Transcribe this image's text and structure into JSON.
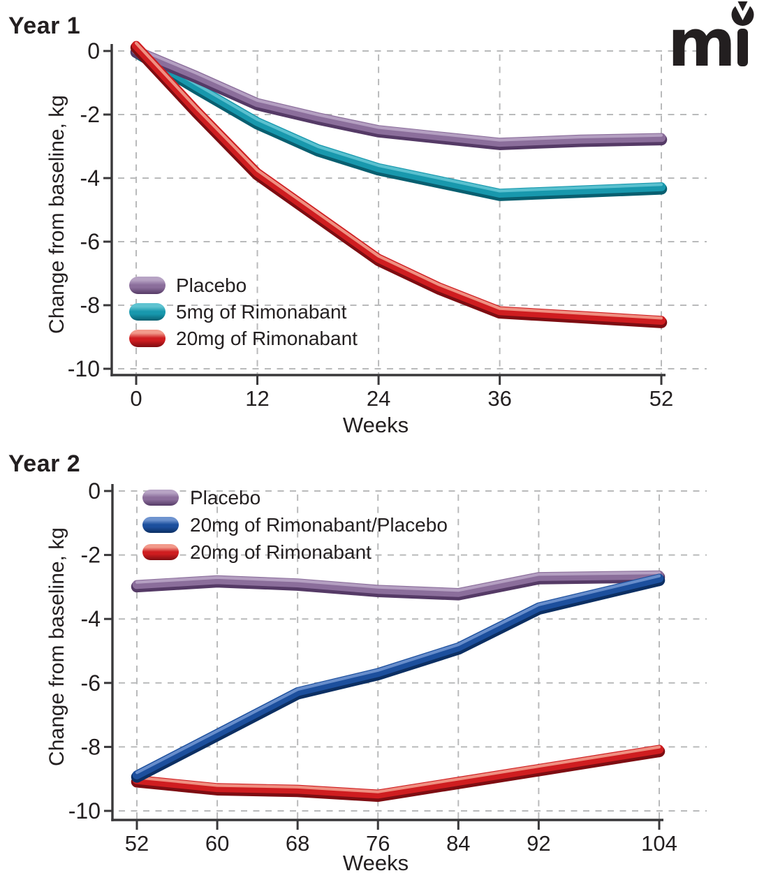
{
  "page": {
    "background": "#ffffff",
    "text_color": "#231f20",
    "axis_color": "#39383a",
    "grid_color": "#b9babb"
  },
  "logo": {
    "m": "m",
    "description": "mi-logo"
  },
  "chart_data": [
    {
      "type": "line",
      "title": "Year 1",
      "xlabel": "Weeks",
      "ylabel": "Change from baseline, kg",
      "x_ticks": [
        0,
        12,
        24,
        36,
        52
      ],
      "y_ticks": [
        0,
        -2,
        -4,
        -6,
        -8,
        -10
      ],
      "xlim": [
        0,
        52
      ],
      "ylim": [
        0,
        -10
      ],
      "grid": true,
      "legend_position": "lower-left",
      "x": [
        0,
        6,
        12,
        18,
        24,
        30,
        36,
        44,
        52
      ],
      "series": [
        {
          "name": "Placebo",
          "color": "#8b6e9b",
          "highlight": "#b7a3c4",
          "shadow": "#553a66",
          "values": [
            0,
            -0.8,
            -1.65,
            -2.1,
            -2.5,
            -2.7,
            -2.9,
            -2.8,
            -2.75
          ]
        },
        {
          "name": "5mg of Rimonabant",
          "color": "#1898ad",
          "highlight": "#5fc3d1",
          "shadow": "#085f70",
          "values": [
            0,
            -1.15,
            -2.25,
            -3.1,
            -3.7,
            -4.1,
            -4.5,
            -4.4,
            -4.3
          ]
        },
        {
          "name": "20mg of Rimonabant",
          "color": "#cf1d20",
          "highlight": "#f29a8b",
          "shadow": "#7e0d12",
          "values": [
            0.15,
            -1.9,
            -3.85,
            -5.2,
            -6.55,
            -7.45,
            -8.2,
            -8.35,
            -8.5
          ]
        }
      ]
    },
    {
      "type": "line",
      "title": "Year 2",
      "xlabel": "Weeks",
      "ylabel": "Change from baseline, kg",
      "x_ticks": [
        52,
        60,
        68,
        76,
        84,
        92,
        104
      ],
      "y_ticks": [
        0,
        -2,
        -4,
        -6,
        -8,
        -10
      ],
      "xlim": [
        52,
        104
      ],
      "ylim": [
        0,
        -10
      ],
      "grid": true,
      "legend_position": "upper-left",
      "x": [
        52,
        60,
        68,
        76,
        84,
        92,
        104
      ],
      "series": [
        {
          "name": "Placebo",
          "color": "#8b6e9b",
          "highlight": "#b7a3c4",
          "shadow": "#553a66",
          "values": [
            -2.95,
            -2.8,
            -2.9,
            -3.1,
            -3.2,
            -2.7,
            -2.65
          ]
        },
        {
          "name": "20mg of Rimonabant/Placebo",
          "color": "#1c4f9d",
          "highlight": "#6e93cf",
          "shadow": "#0c2f63",
          "values": [
            -8.9,
            -7.6,
            -6.3,
            -5.7,
            -4.9,
            -3.65,
            -2.75
          ]
        },
        {
          "name": "20mg of Rimonabant",
          "color": "#cf1d20",
          "highlight": "#f29a8b",
          "shadow": "#7e0d12",
          "values": [
            -9.05,
            -9.3,
            -9.35,
            -9.5,
            -9.1,
            -8.7,
            -8.1
          ]
        }
      ]
    }
  ]
}
